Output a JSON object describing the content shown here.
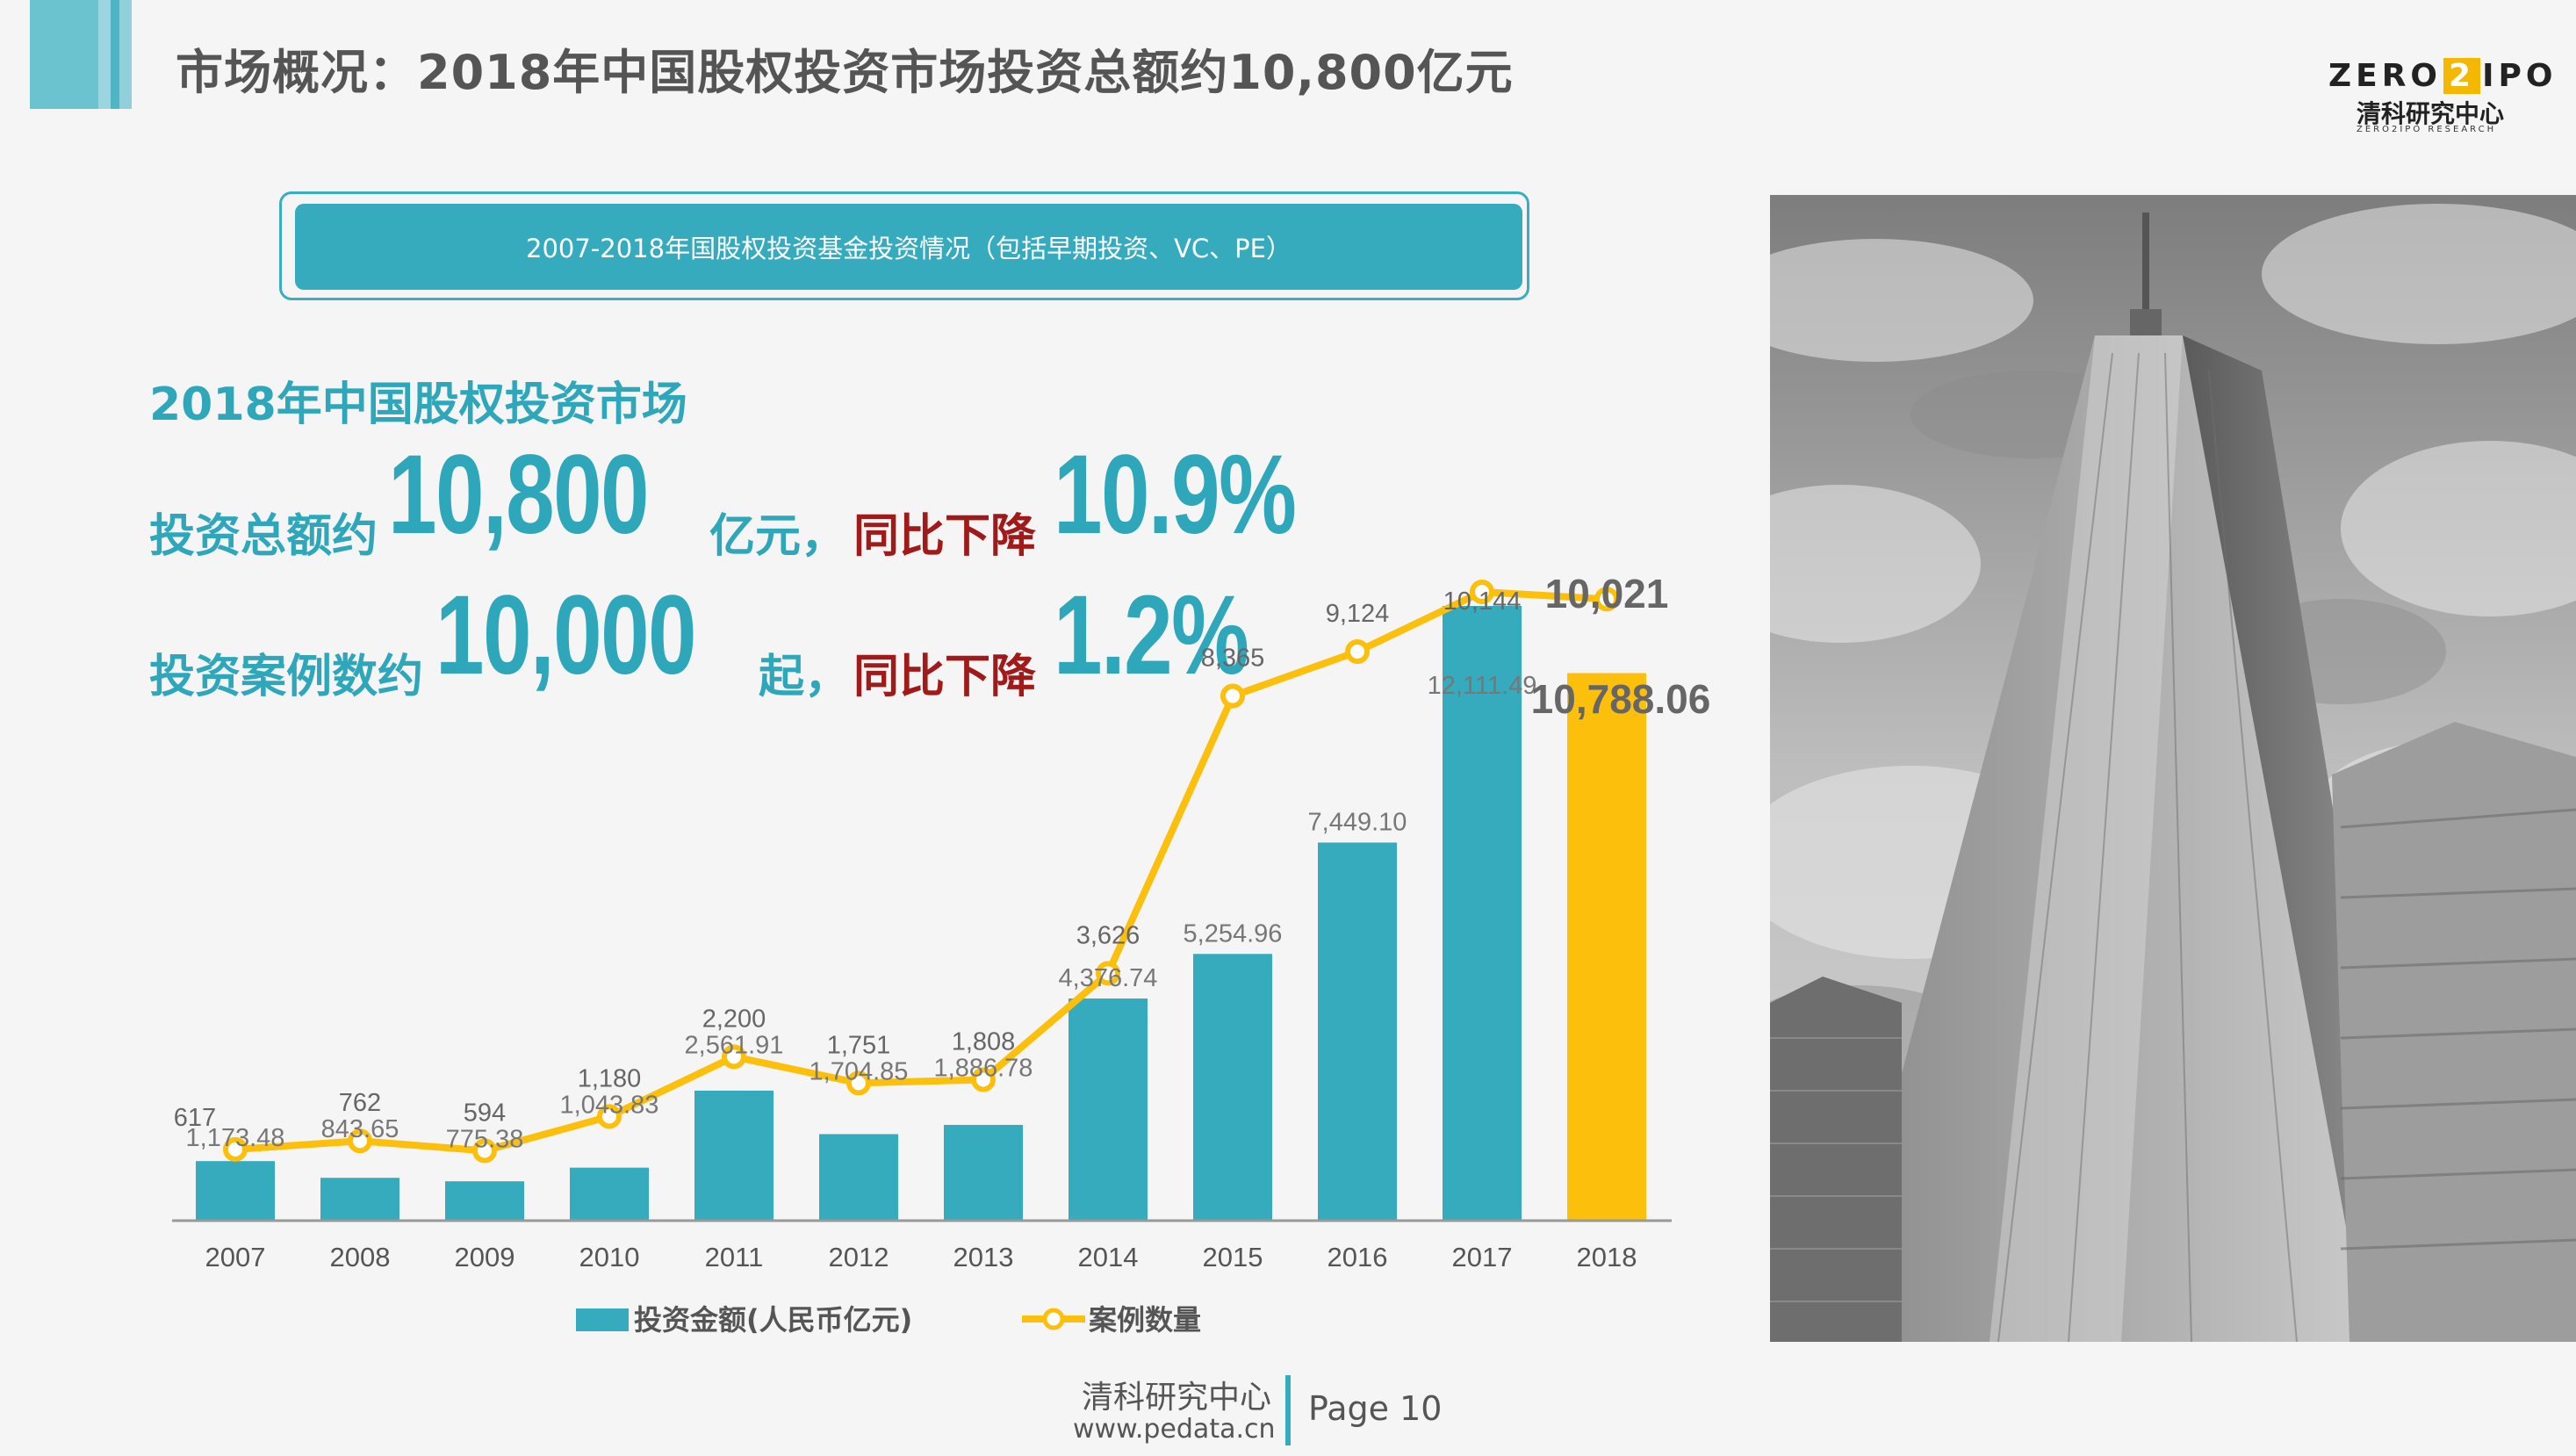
{
  "header": {
    "title": "市场概况：2018年中国股权投资市场投资总额约10,800亿元"
  },
  "logo": {
    "word_left": "ZERO",
    "word_mid": "2",
    "word_right": "IPO",
    "cn": "清科研究中心",
    "en": "ZERO2IPO RESEARCH"
  },
  "banner": {
    "text": "2007-2018年国股权投资基金投资情况（包括早期投资、VC、PE）"
  },
  "headline": {
    "line1": "2018年中国股权投资市场",
    "l2_prefix": "投资总额约",
    "l2_value": "10,800",
    "l2_unit": "亿元，",
    "l2_change_label": "同比下降",
    "l2_change": "10.9%",
    "l3_prefix": "投资案例数约",
    "l3_value": "10,000",
    "l3_unit": "起，",
    "l3_change_label": "同比下降",
    "l3_change": "1.2%"
  },
  "colors": {
    "teal": "#35abbd",
    "yellow": "#fbbf0c",
    "red": "#a11a1a",
    "title_gray": "#555555"
  },
  "chart_data": {
    "type": "bar",
    "categories": [
      "2007",
      "2008",
      "2009",
      "2010",
      "2011",
      "2012",
      "2013",
      "2014",
      "2015",
      "2016",
      "2017",
      "2018"
    ],
    "series": [
      {
        "name": "投资金额(人民币亿元)",
        "kind": "bar",
        "values": [
          1173.48,
          843.65,
          775.38,
          1043.83,
          2561.91,
          1704.85,
          1886.78,
          4376.74,
          5254.96,
          7449.1,
          12111.49,
          10788.06
        ],
        "labels": [
          "1,173.48",
          "843.65",
          "775.38",
          "1,043.83",
          "2,561.91",
          "1,704.85",
          "1,886.78",
          "4,376.74",
          "5,254.96",
          "7,449.10",
          "12,111.49",
          "10,788.06"
        ]
      },
      {
        "name": "案例数量",
        "kind": "line",
        "values": [
          617,
          762,
          594,
          1180,
          2200,
          1751,
          1808,
          3626,
          8365,
          9124,
          10144,
          10021
        ],
        "labels": [
          "617",
          "762",
          "594",
          "1,180",
          "2,200",
          "1,751",
          "1,808",
          "3,626",
          "8,365",
          "9,124",
          "10,144",
          "10,021"
        ]
      }
    ],
    "ylim_bar": [
      0,
      13000
    ],
    "ylim_line": [
      0,
      14000
    ],
    "legend": "bottom",
    "highlight_last": true,
    "grid": false
  },
  "footer": {
    "org": "清科研究中心",
    "url": "www.pedata.cn",
    "page": "Page 10"
  }
}
